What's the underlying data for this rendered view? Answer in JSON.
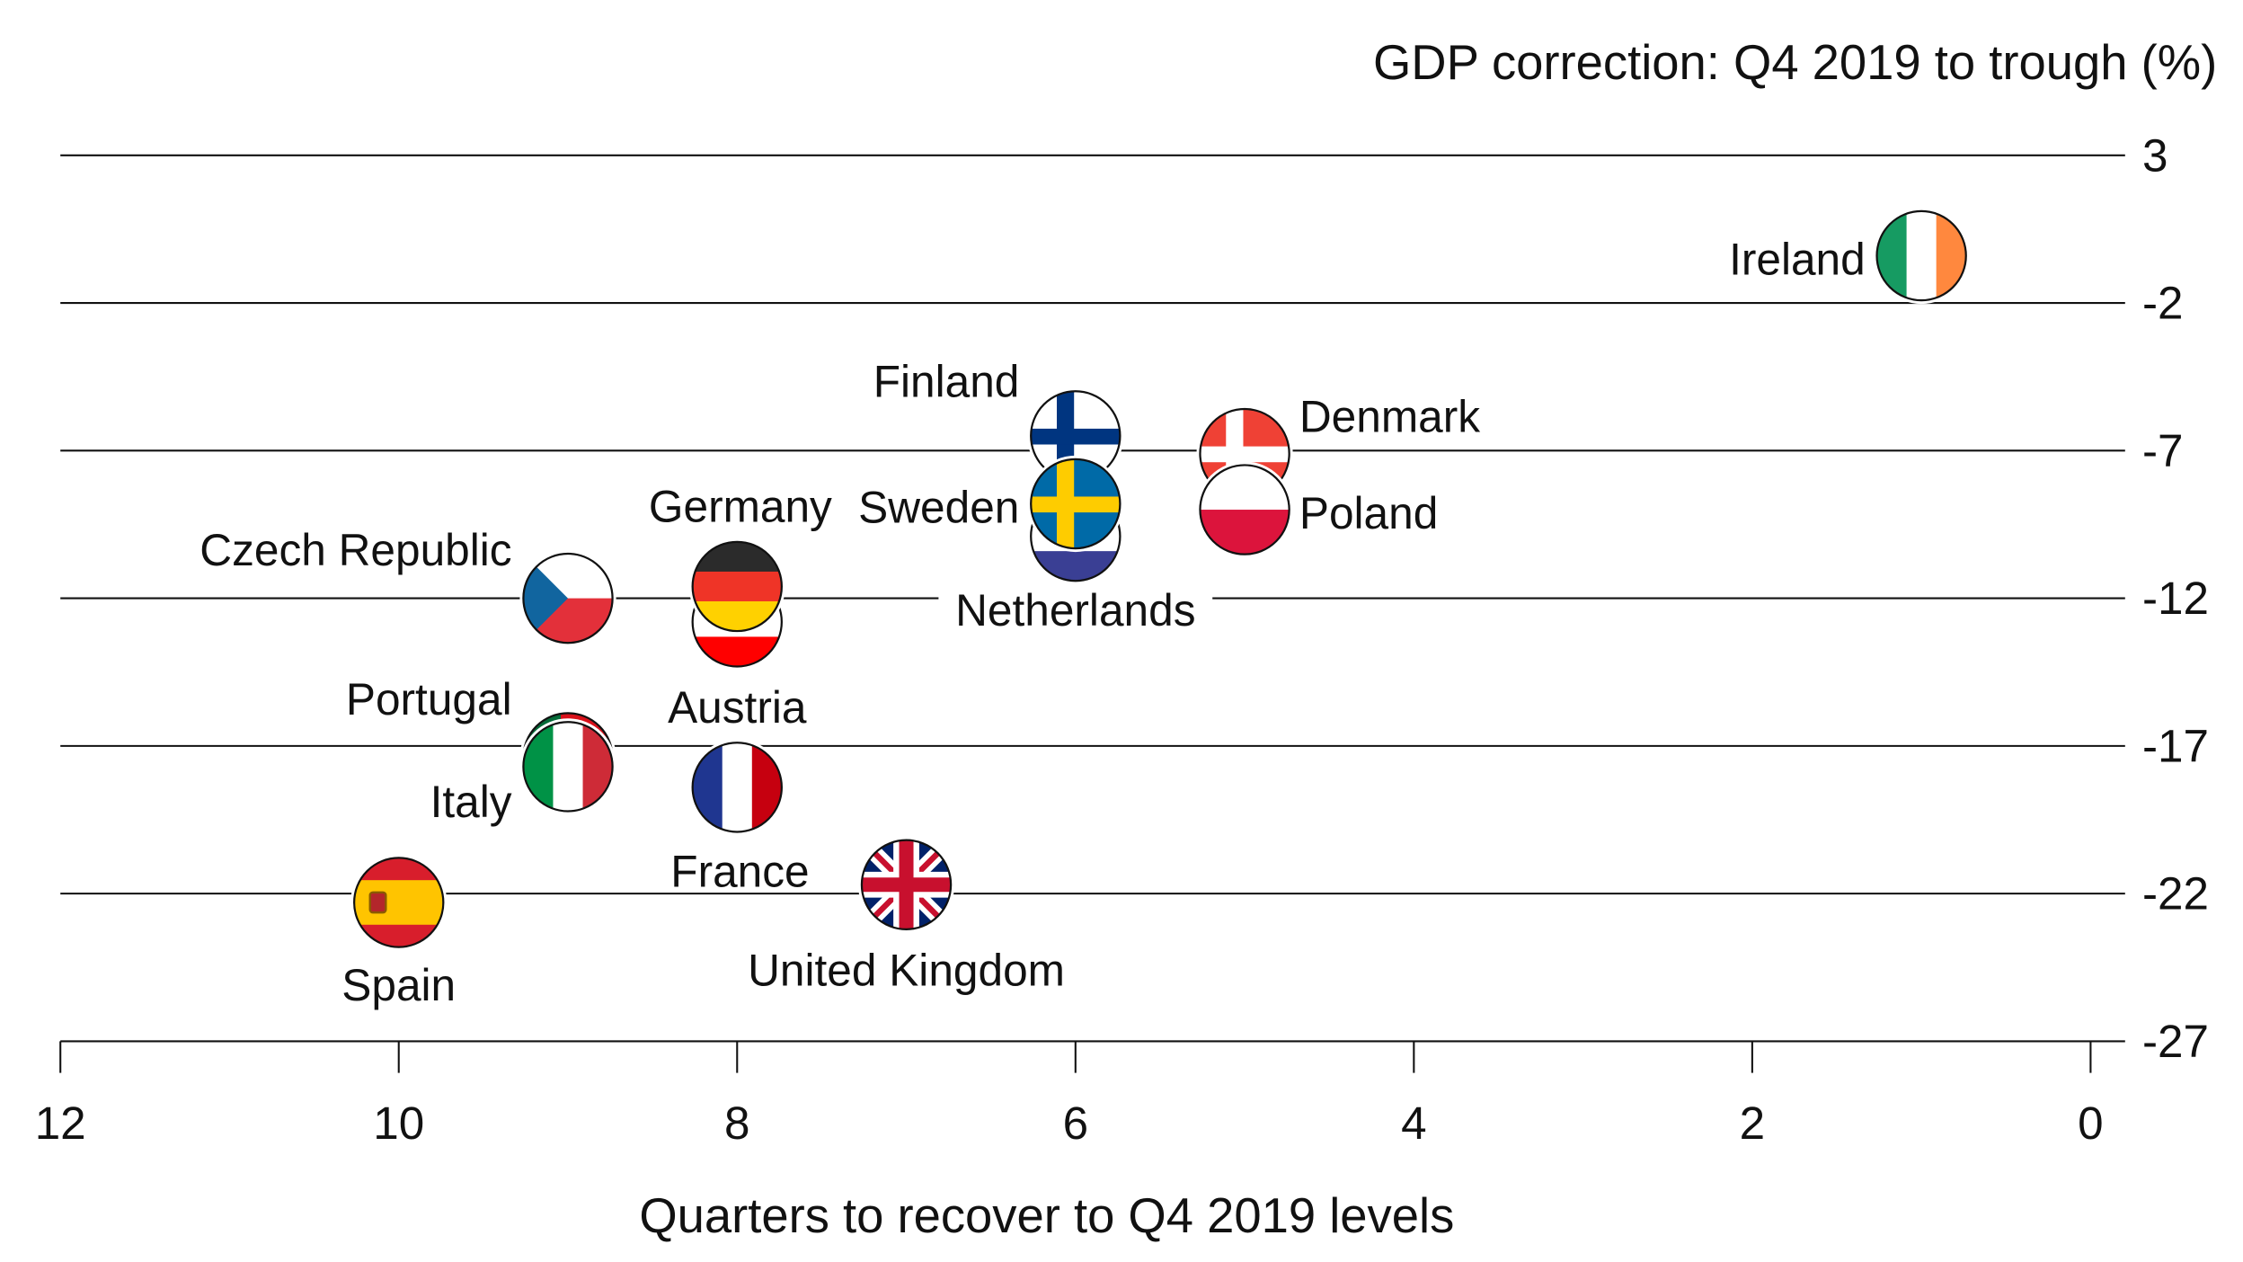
{
  "chart_data": {
    "type": "scatter",
    "title": "GDP correction: Q4 2019 to trough (%)",
    "xlabel": "Quarters to recover to Q4 2019 levels",
    "ylabel": "",
    "xlim": [
      12,
      0
    ],
    "ylim": [
      -27,
      3
    ],
    "x_reversed": true,
    "xticks": [
      "12",
      "10",
      "8",
      "6",
      "4",
      "2",
      "0"
    ],
    "xtick_values": [
      12,
      10,
      8,
      6,
      4,
      2,
      0
    ],
    "yticks": [
      "3",
      "-2",
      "-7",
      "-12",
      "-17",
      "-22",
      "-27"
    ],
    "ytick_values": [
      3,
      -2,
      -7,
      -12,
      -17,
      -22,
      -27
    ],
    "grid": "horizontal",
    "marker": "country flag",
    "points": [
      {
        "name": "Ireland",
        "x": 1,
        "y": -0.4,
        "flag": "ireland"
      },
      {
        "name": "Netherlands",
        "x": 6,
        "y": -9.9,
        "flag": "netherlands"
      },
      {
        "name": "Finland",
        "x": 6,
        "y": -6.5,
        "flag": "finland"
      },
      {
        "name": "Sweden",
        "x": 6,
        "y": -8.8,
        "flag": "sweden"
      },
      {
        "name": "Denmark",
        "x": 5,
        "y": -7.1,
        "flag": "denmark"
      },
      {
        "name": "Poland",
        "x": 5,
        "y": -9.0,
        "flag": "poland"
      },
      {
        "name": "Czech Republic",
        "x": 9,
        "y": -12.0,
        "flag": "czech"
      },
      {
        "name": "Austria",
        "x": 8,
        "y": -12.8,
        "flag": "austria"
      },
      {
        "name": "Germany",
        "x": 8,
        "y": -11.6,
        "flag": "germany"
      },
      {
        "name": "Portugal",
        "x": 9,
        "y": -17.4,
        "flag": "portugal"
      },
      {
        "name": "Italy",
        "x": 9,
        "y": -17.7,
        "flag": "italy"
      },
      {
        "name": "France",
        "x": 8,
        "y": -18.4,
        "flag": "france"
      },
      {
        "name": "United Kingdom",
        "x": 7,
        "y": -21.7,
        "flag": "uk"
      },
      {
        "name": "Spain",
        "x": 10,
        "y": -22.3,
        "flag": "spain"
      }
    ]
  }
}
